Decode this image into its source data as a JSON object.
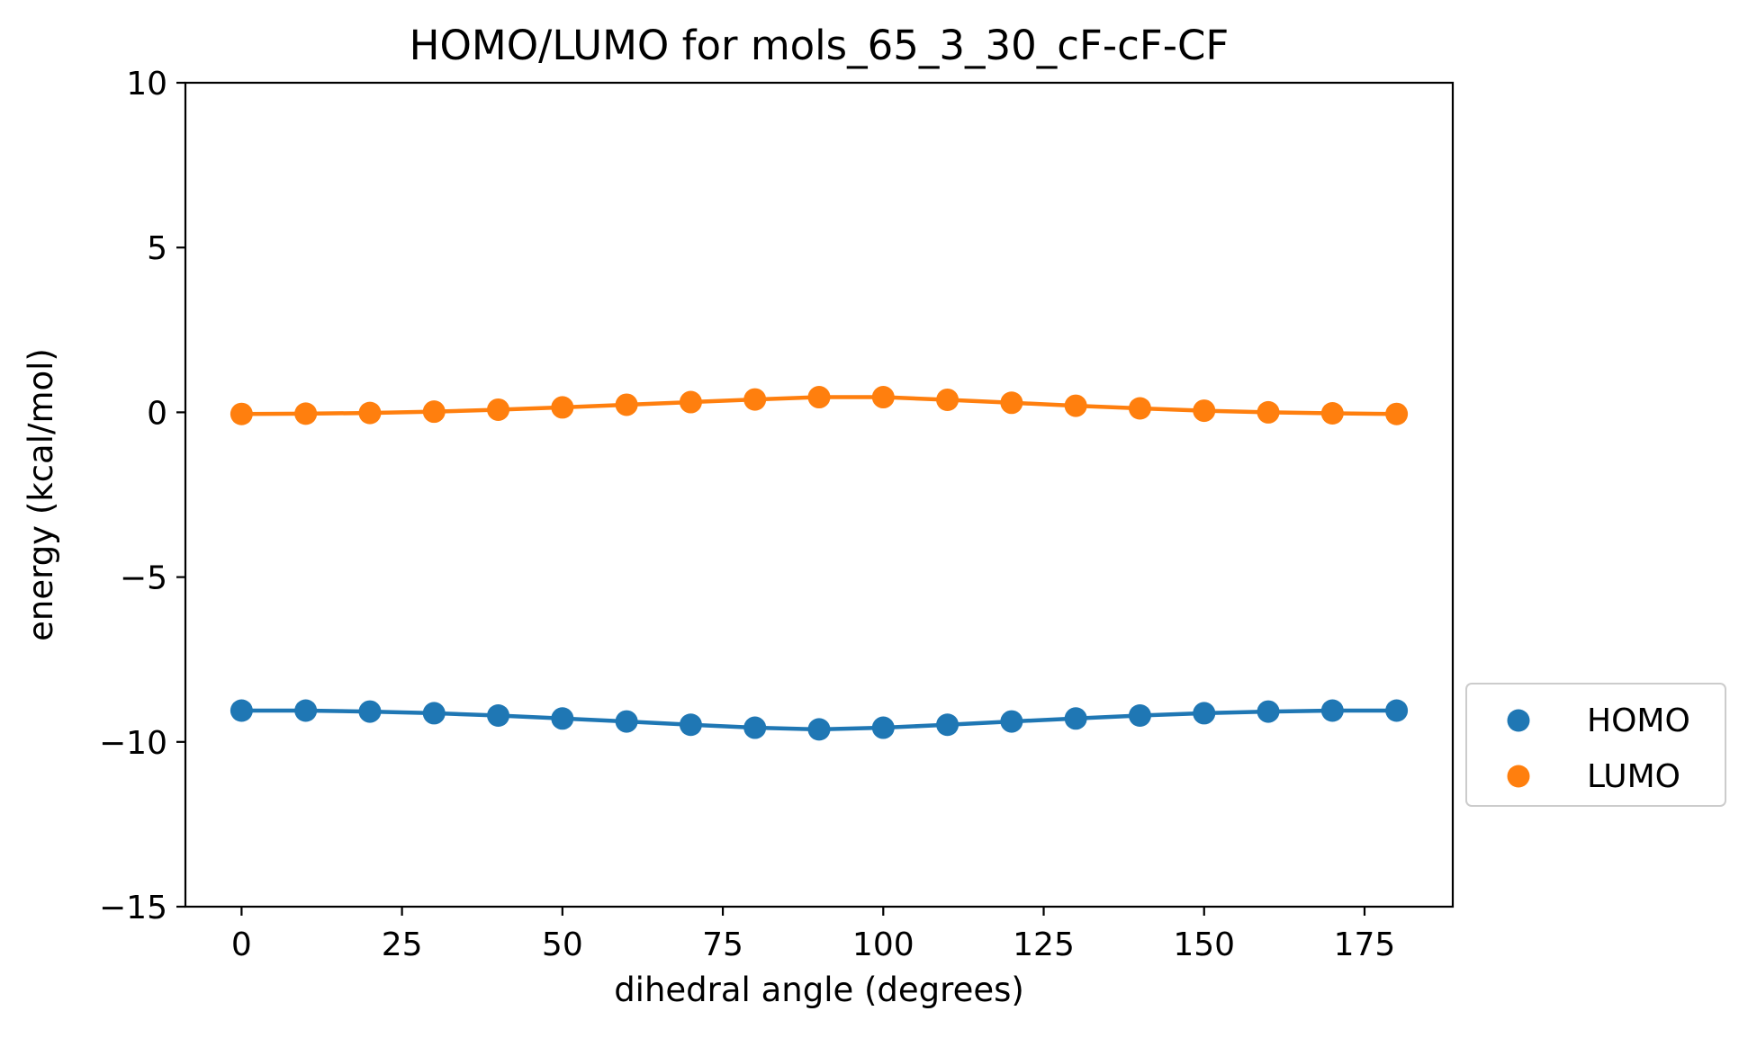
{
  "chart_data": {
    "type": "line",
    "title": "HOMO/LUMO for mols_65_3_30_cF-cF-CF",
    "xlabel": "dihedral angle (degrees)",
    "ylabel": "energy (kcal/mol)",
    "xlim": [
      -8.75,
      188.75
    ],
    "ylim": [
      -15,
      10
    ],
    "xticks": [
      0,
      25,
      50,
      75,
      100,
      125,
      150,
      175
    ],
    "xtick_labels": [
      "0",
      "25",
      "50",
      "75",
      "100",
      "125",
      "150",
      "175"
    ],
    "yticks": [
      -15,
      -10,
      -5,
      0,
      5,
      10
    ],
    "ytick_labels": [
      "−15",
      "−10",
      "−5",
      "0",
      "5",
      "10"
    ],
    "grid": false,
    "legend_position": "outside-right",
    "x": [
      0,
      10,
      20,
      30,
      40,
      50,
      60,
      70,
      80,
      90,
      100,
      110,
      120,
      130,
      140,
      150,
      160,
      170,
      180
    ],
    "series": [
      {
        "name": "HOMO",
        "color": "#1f77b4",
        "values": [
          -9.05,
          -9.05,
          -9.08,
          -9.13,
          -9.2,
          -9.29,
          -9.38,
          -9.48,
          -9.57,
          -9.62,
          -9.57,
          -9.48,
          -9.38,
          -9.29,
          -9.2,
          -9.13,
          -9.08,
          -9.05,
          -9.05
        ]
      },
      {
        "name": "LUMO",
        "color": "#ff7f0e",
        "values": [
          -0.05,
          -0.04,
          -0.02,
          0.02,
          0.08,
          0.15,
          0.23,
          0.31,
          0.39,
          0.46,
          0.46,
          0.38,
          0.29,
          0.2,
          0.12,
          0.05,
          0.0,
          -0.03,
          -0.05
        ]
      }
    ]
  }
}
